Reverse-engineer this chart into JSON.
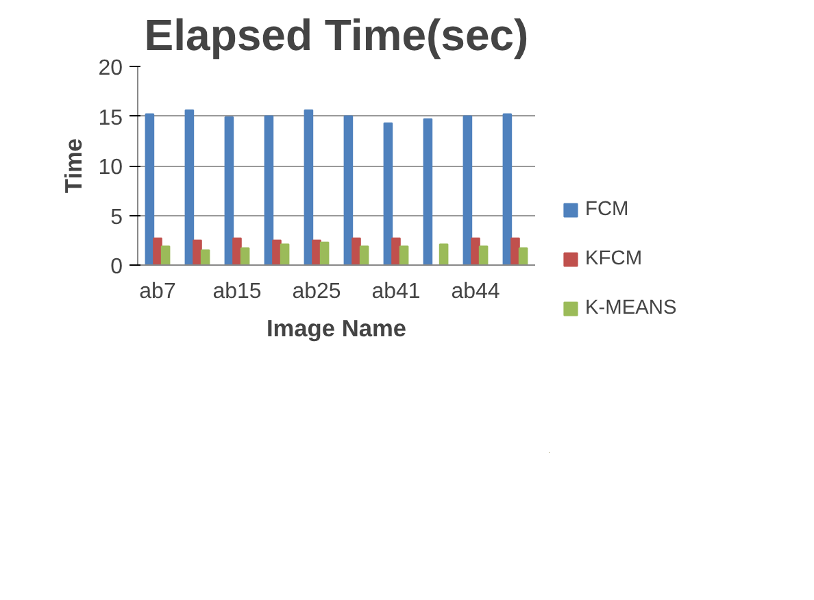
{
  "chart_data": {
    "type": "bar",
    "title": "Elapsed Time(sec)",
    "xlabel": "Image Name",
    "ylabel": "Time",
    "categories": [
      "ab7",
      null,
      "ab15",
      null,
      "ab25",
      null,
      "ab41",
      null,
      "ab44",
      null
    ],
    "series": [
      {
        "name": "FCM",
        "color": "#4f81bd",
        "values": [
          15.2,
          15.6,
          14.9,
          15.0,
          15.6,
          15.0,
          14.3,
          14.7,
          15.0,
          15.2
        ]
      },
      {
        "name": "KFCM",
        "color": "#c0504d",
        "values": [
          2.7,
          2.5,
          2.7,
          2.5,
          2.5,
          2.7,
          2.7,
          null,
          2.7,
          2.7
        ]
      },
      {
        "name": "K-MEANS",
        "color": "#9bbb59",
        "values": [
          1.9,
          1.5,
          1.7,
          2.1,
          2.3,
          1.9,
          1.9,
          2.1,
          1.9,
          1.7
        ]
      }
    ],
    "ylim": [
      0,
      20
    ],
    "yticks": [
      0,
      5,
      10,
      15,
      20
    ],
    "grid": "y",
    "legend": "right"
  }
}
